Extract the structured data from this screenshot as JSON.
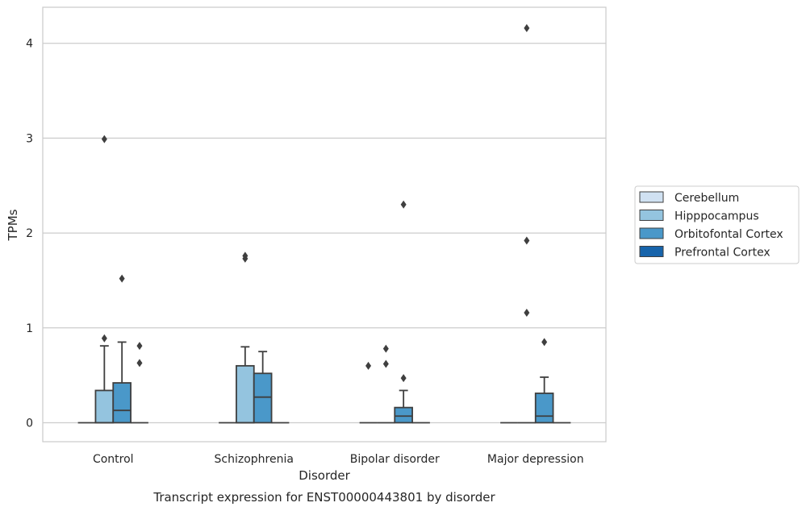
{
  "chart_data": {
    "type": "box",
    "title": "Transcript expression for ENST00000443801 by disorder",
    "xlabel": "Disorder",
    "ylabel": "TPMs",
    "ylim": [
      -0.2,
      4.38
    ],
    "yticks": [
      0,
      1,
      2,
      3,
      4
    ],
    "grid": "horizontal",
    "legend_position": "right",
    "categories": [
      "Control",
      "Schizophrenia",
      "Bipolar disorder",
      "Major depression"
    ],
    "series": [
      {
        "name": "Cerebellum",
        "color": "#d0e1f2",
        "boxes": [
          {
            "q1": 0,
            "median": 0,
            "q3": 0,
            "whislo": 0,
            "whishi": 0,
            "fliers": []
          },
          {
            "q1": 0,
            "median": 0,
            "q3": 0,
            "whislo": 0,
            "whishi": 0,
            "fliers": []
          },
          {
            "q1": 0,
            "median": 0,
            "q3": 0,
            "whislo": 0,
            "whishi": 0,
            "fliers": [
              0.6
            ]
          },
          {
            "q1": 0,
            "median": 0,
            "q3": 0,
            "whislo": 0,
            "whishi": 0,
            "fliers": []
          }
        ]
      },
      {
        "name": "Hipppocampus",
        "color": "#94c4df",
        "boxes": [
          {
            "q1": 0,
            "median": 0,
            "q3": 0.34,
            "whislo": 0,
            "whishi": 0.81,
            "fliers": [
              0.89,
              2.99
            ]
          },
          {
            "q1": 0,
            "median": 0,
            "q3": 0.6,
            "whislo": 0,
            "whishi": 0.8,
            "fliers": [
              1.73,
              1.76
            ]
          },
          {
            "q1": 0,
            "median": 0,
            "q3": 0,
            "whislo": 0,
            "whishi": 0,
            "fliers": [
              0.62,
              0.78
            ]
          },
          {
            "q1": 0,
            "median": 0,
            "q3": 0,
            "whislo": 0,
            "whishi": 0,
            "fliers": [
              1.16,
              1.92,
              4.16
            ]
          }
        ]
      },
      {
        "name": "Orbitofontal Cortex",
        "color": "#4a98c9",
        "boxes": [
          {
            "q1": 0,
            "median": 0.13,
            "q3": 0.42,
            "whislo": 0,
            "whishi": 0.85,
            "fliers": [
              1.52
            ]
          },
          {
            "q1": 0,
            "median": 0.27,
            "q3": 0.52,
            "whislo": 0,
            "whishi": 0.75,
            "fliers": []
          },
          {
            "q1": 0,
            "median": 0.07,
            "q3": 0.16,
            "whislo": 0,
            "whishi": 0.34,
            "fliers": [
              0.47,
              2.3
            ]
          },
          {
            "q1": 0,
            "median": 0.07,
            "q3": 0.31,
            "whislo": 0,
            "whishi": 0.48,
            "fliers": [
              0.85
            ]
          }
        ]
      },
      {
        "name": "Prefrontal Cortex",
        "color": "#1764ab",
        "boxes": [
          {
            "q1": 0,
            "median": 0,
            "q3": 0,
            "whislo": 0,
            "whishi": 0,
            "fliers": [
              0.63,
              0.81
            ]
          },
          {
            "q1": 0,
            "median": 0,
            "q3": 0,
            "whislo": 0,
            "whishi": 0,
            "fliers": []
          },
          {
            "q1": 0,
            "median": 0,
            "q3": 0,
            "whislo": 0,
            "whishi": 0,
            "fliers": []
          },
          {
            "q1": 0,
            "median": 0,
            "q3": 0,
            "whislo": 0,
            "whishi": 0,
            "fliers": []
          }
        ]
      }
    ]
  }
}
